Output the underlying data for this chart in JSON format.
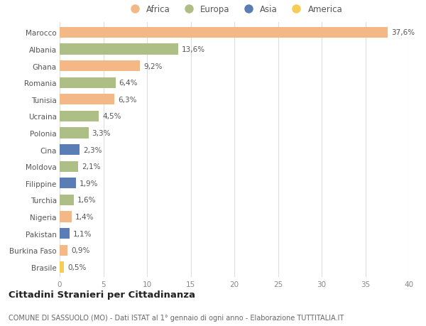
{
  "countries": [
    "Marocco",
    "Albania",
    "Ghana",
    "Romania",
    "Tunisia",
    "Ucraina",
    "Polonia",
    "Cina",
    "Moldova",
    "Filippine",
    "Turchia",
    "Nigeria",
    "Pakistan",
    "Burkina Faso",
    "Brasile"
  ],
  "values": [
    37.6,
    13.6,
    9.2,
    6.4,
    6.3,
    4.5,
    3.3,
    2.3,
    2.1,
    1.9,
    1.6,
    1.4,
    1.1,
    0.9,
    0.5
  ],
  "labels": [
    "37,6%",
    "13,6%",
    "9,2%",
    "6,4%",
    "6,3%",
    "4,5%",
    "3,3%",
    "2,3%",
    "2,1%",
    "1,9%",
    "1,6%",
    "1,4%",
    "1,1%",
    "0,9%",
    "0,5%"
  ],
  "continents": [
    "Africa",
    "Europa",
    "Africa",
    "Europa",
    "Africa",
    "Europa",
    "Europa",
    "Asia",
    "Europa",
    "Asia",
    "Europa",
    "Africa",
    "Asia",
    "Africa",
    "America"
  ],
  "colors": {
    "Africa": "#F4B886",
    "Europa": "#ADBF85",
    "Asia": "#5B7DB5",
    "America": "#F5CC55"
  },
  "legend_order": [
    "Africa",
    "Europa",
    "Asia",
    "America"
  ],
  "xlim": [
    0,
    40
  ],
  "xticks": [
    0,
    5,
    10,
    15,
    20,
    25,
    30,
    35,
    40
  ],
  "title": "Cittadini Stranieri per Cittadinanza",
  "subtitle": "COMUNE DI SASSUOLO (MO) - Dati ISTAT al 1° gennaio di ogni anno - Elaborazione TUTTITALIA.IT",
  "bg_color": "#ffffff",
  "bar_height": 0.65,
  "label_fontsize": 7.5,
  "ytick_fontsize": 7.5,
  "xtick_fontsize": 7.5,
  "title_fontsize": 9.5,
  "subtitle_fontsize": 7.0
}
